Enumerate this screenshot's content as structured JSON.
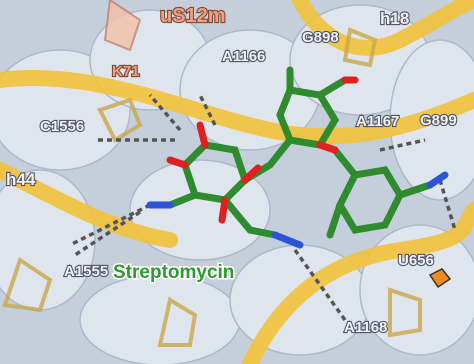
{
  "labels": [
    {
      "text": "uS12m"
    },
    {
      "text": "K71"
    },
    {
      "text": "A1166"
    },
    {
      "text": "G898"
    },
    {
      "text": "h18"
    },
    {
      "text": "C1556"
    },
    {
      "text": "A1167"
    },
    {
      "text": "G899"
    },
    {
      "text": "h44"
    },
    {
      "text": "A1555"
    },
    {
      "text": "Streptomycin"
    },
    {
      "text": "U656"
    },
    {
      "text": "A1168"
    }
  ]
}
